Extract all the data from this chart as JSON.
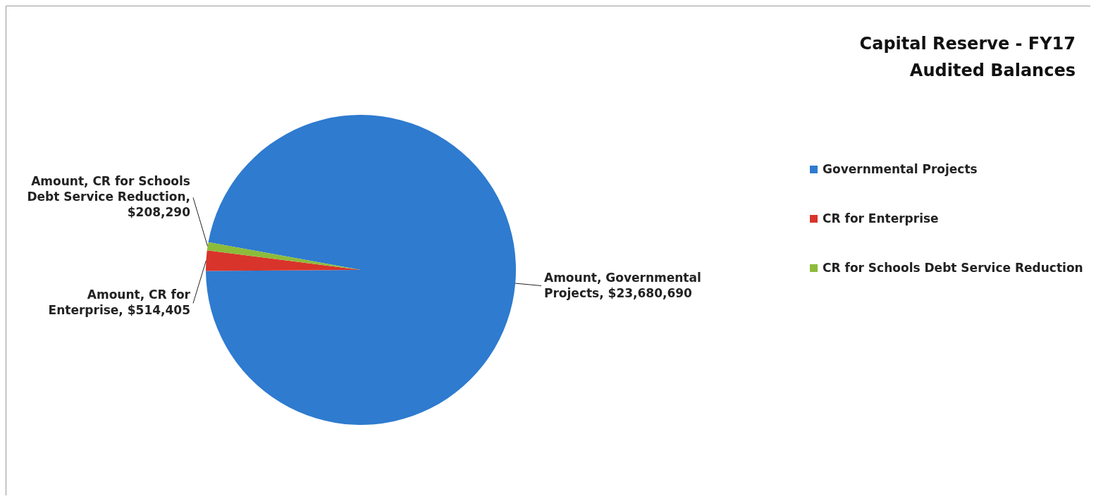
{
  "chart_data": {
    "type": "pie",
    "title": "Capital Reserve - FY17 Audited Balances",
    "categories": [
      "Governmental Projects",
      "CR for Enterprise",
      "CR for Schools Debt Service Reduction"
    ],
    "values": [
      23680690,
      514405,
      208290
    ],
    "colors": [
      "#2e7bcf",
      "#d9342b",
      "#8dbb3a"
    ],
    "value_labels": [
      "Amount, Governmental Projects, $23,680,690",
      "Amount, CR for Enterprise, $514,405",
      "Amount, CR for Schools Debt Service Reduction, $208,290"
    ],
    "legend": "right"
  }
}
